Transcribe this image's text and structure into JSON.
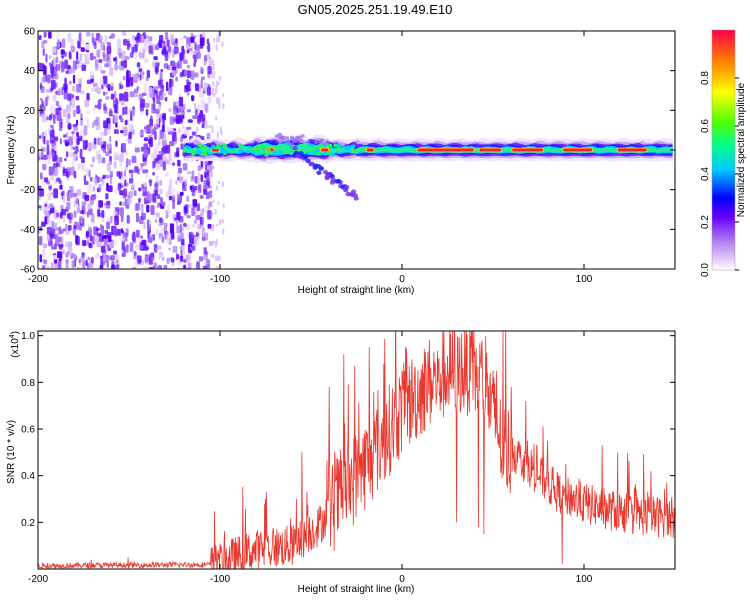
{
  "title": "GN05.2025.251.19.49.E10",
  "chart_data": [
    {
      "type": "heatmap",
      "name": "spectrogram",
      "xlabel": "Height of straight line (km)",
      "ylabel": "Frequency (Hz)",
      "xlim": [
        -200,
        150
      ],
      "ylim": [
        -60,
        60
      ],
      "xticks": [
        -200,
        -100,
        0,
        100
      ],
      "yticks": [
        60,
        40,
        20,
        0,
        -20,
        -40,
        -60
      ],
      "colorbar": {
        "label": "Normalized spectral amplitude",
        "range": [
          0,
          1
        ],
        "ticks": [
          "0.0",
          "0.2",
          "0.4",
          "0.6",
          "0.8"
        ]
      },
      "features": {
        "noise_region_x": [
          -200,
          -105
        ],
        "main_band_frequency": 0,
        "main_band_x": [
          -120,
          150
        ],
        "tail_branch": [
          [
            -60,
            0
          ],
          [
            -45,
            -10
          ],
          [
            -35,
            -17
          ],
          [
            -25,
            -24
          ]
        ]
      }
    },
    {
      "type": "line",
      "name": "snr",
      "xlabel": "Height of straight line (km)",
      "ylabel": "SNR (10 * v/v)",
      "multiplier": "(x10",
      "multiplier_exp": "4",
      "xlim": [
        -200,
        150
      ],
      "ylim": [
        0,
        1.02
      ],
      "xticks": [
        -200,
        -100,
        0,
        100
      ],
      "yticks": [
        "0.2",
        "0.4",
        "0.6",
        "0.8",
        "1.0"
      ],
      "color": "#e8382f",
      "envelope": {
        "x": [
          -200,
          -150,
          -105,
          -95,
          -80,
          -60,
          -45,
          -35,
          -25,
          -15,
          0,
          15,
          25,
          35,
          45,
          55,
          70,
          85,
          100,
          115,
          130,
          150
        ],
        "y": [
          0.015,
          0.018,
          0.02,
          0.05,
          0.09,
          0.11,
          0.2,
          0.32,
          0.42,
          0.52,
          0.7,
          0.82,
          0.86,
          0.88,
          0.83,
          0.55,
          0.45,
          0.34,
          0.29,
          0.26,
          0.24,
          0.23
        ]
      },
      "spikes": [
        [
          -75,
          0.3
        ],
        [
          -55,
          0.5
        ],
        [
          -40,
          0.78
        ],
        [
          -32,
          0.92
        ],
        [
          -26,
          0.87
        ],
        [
          -18,
          0.95
        ],
        [
          -10,
          0.88
        ],
        [
          0,
          0.85
        ],
        [
          20,
          0.9
        ],
        [
          38,
          0.95
        ],
        [
          46,
          1.0
        ],
        [
          52,
          0.85
        ],
        [
          60,
          0.78
        ],
        [
          68,
          0.72
        ],
        [
          80,
          0.55
        ],
        [
          90,
          0.45
        ],
        [
          100,
          0.35
        ]
      ],
      "dips": [
        [
          30,
          0.2
        ],
        [
          42,
          0.18
        ],
        [
          45,
          0.15
        ],
        [
          88,
          0.02
        ],
        [
          58,
          0.35
        ]
      ]
    }
  ]
}
